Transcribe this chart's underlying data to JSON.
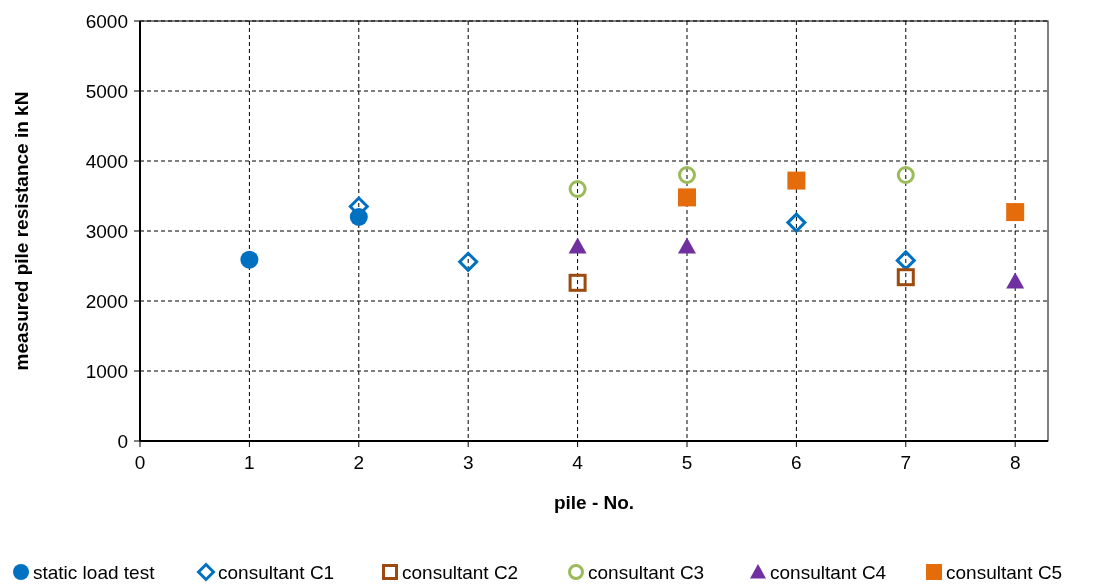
{
  "chart_data": {
    "type": "scatter",
    "xlabel": "pile - No.",
    "ylabel": "measured pile resistance in kN",
    "x": [
      1,
      2,
      3,
      4,
      5,
      6,
      7,
      8
    ],
    "xlim": [
      0,
      8.3
    ],
    "xticks": [
      0,
      1,
      2,
      3,
      4,
      5,
      6,
      7,
      8
    ],
    "ylim": [
      0,
      6000
    ],
    "yticks": [
      0,
      1000,
      2000,
      3000,
      4000,
      5000,
      6000
    ],
    "grid": true,
    "legend": "bottom",
    "series": [
      {
        "name": "consultant C1",
        "color": "#0070c0",
        "marker": "diamond",
        "values": [
          null,
          3350,
          2560,
          null,
          null,
          3120,
          2580,
          null
        ]
      },
      {
        "name": "consultant C2",
        "color": "#9c4a0f",
        "marker": "square",
        "values": [
          null,
          null,
          null,
          2260,
          null,
          null,
          2340,
          null
        ]
      },
      {
        "name": "consultant C3",
        "color": "#9bbb59",
        "marker": "circle",
        "values": [
          null,
          null,
          null,
          3600,
          3800,
          null,
          3800,
          null
        ]
      },
      {
        "name": "consultant C4",
        "color": "#7030a0",
        "marker": "triangle",
        "values": [
          null,
          null,
          null,
          2780,
          2780,
          null,
          null,
          2280
        ]
      },
      {
        "name": "consultant C5",
        "color": "#e46c0a",
        "marker": "square",
        "values": [
          null,
          null,
          null,
          null,
          3480,
          3720,
          null,
          3270
        ]
      },
      {
        "name": "static load test",
        "color": "#0070c0",
        "marker": "circle",
        "values": [
          2590,
          3200,
          null,
          null,
          null,
          null,
          null,
          null
        ]
      }
    ]
  }
}
